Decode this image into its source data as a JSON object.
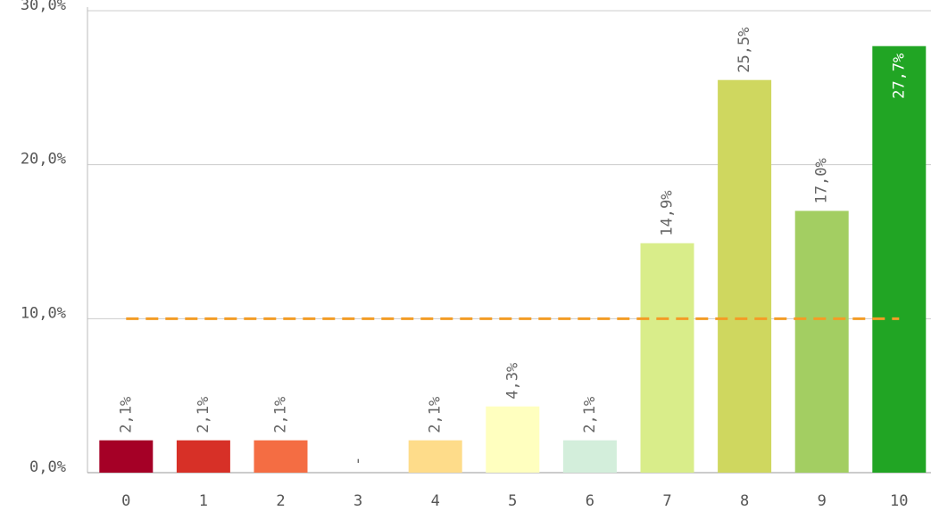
{
  "chart_data": {
    "type": "bar",
    "categories": [
      "0",
      "1",
      "2",
      "3",
      "4",
      "5",
      "6",
      "7",
      "8",
      "9",
      "10"
    ],
    "values": [
      2.1,
      2.1,
      2.1,
      0,
      2.1,
      4.3,
      2.1,
      14.9,
      25.5,
      17.0,
      27.7
    ],
    "value_labels": [
      "2,1%",
      "2,1%",
      "2,1%",
      "-",
      "2,1%",
      "4,3%",
      "2,1%",
      "14,9%",
      "25,5%",
      "17,0%",
      "27,7%"
    ],
    "colors": [
      "#a50026",
      "#d73027",
      "#f46d43",
      "#fee08b",
      "#fedc8a",
      "#ffffbf",
      "#d3eedb",
      "#d9ed8a",
      "#cfd75f",
      "#a3ce62",
      "#21a524"
    ],
    "ylim": [
      0,
      30
    ],
    "yticks": [
      {
        "value": 0,
        "label": "0,0%"
      },
      {
        "value": 10,
        "label": "10,0%"
      },
      {
        "value": 20,
        "label": "20,0%"
      },
      {
        "value": 30,
        "label": "30,0%"
      }
    ],
    "grid": true,
    "reference_line": {
      "value": 10,
      "color": "#f39c26"
    }
  }
}
